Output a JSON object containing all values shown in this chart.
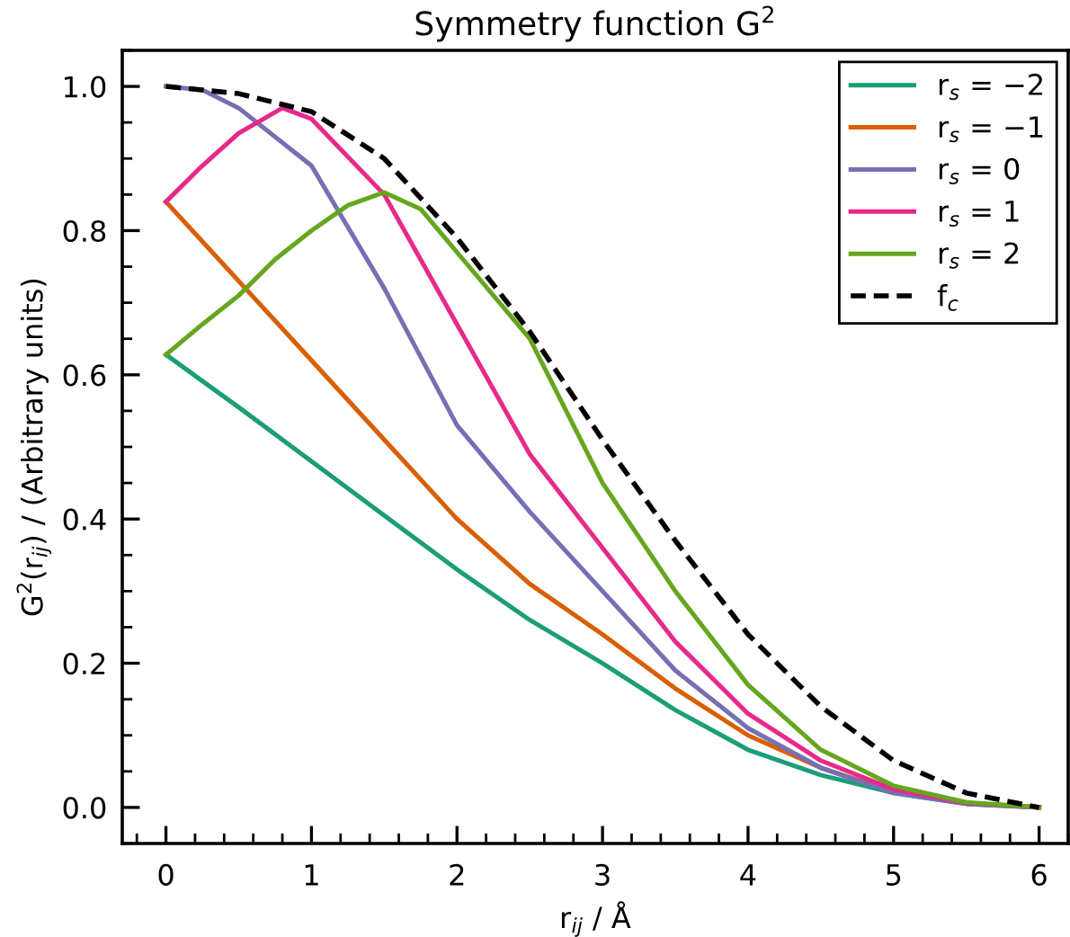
{
  "chart_data": {
    "type": "line",
    "title": "Symmetry function G$^{2}$",
    "xlabel": "r$_{ij}$ / Å",
    "ylabel": "G$^{2}$(r$_{ij}$) / (Arbitrary units)",
    "xlim": [
      -0.3,
      6.2
    ],
    "ylim": [
      -0.05,
      1.05
    ],
    "xticks": [
      0,
      1,
      2,
      3,
      4,
      5,
      6
    ],
    "yticks": [
      {
        "value": 0,
        "label": "0.0"
      },
      {
        "value": 0.2,
        "label": "0.2"
      },
      {
        "value": 0.4,
        "label": "0.4"
      },
      {
        "value": 0.6,
        "label": "0.6"
      },
      {
        "value": 0.8,
        "label": "0.8"
      },
      {
        "value": 1.0,
        "label": "1.0"
      }
    ],
    "grid": false,
    "legend": "top right",
    "marker": "none",
    "series": [
      {
        "name": "r$_{s}$ = −2",
        "color": "#1b9e77",
        "x": [
          0,
          0.5,
          1,
          1.5,
          2,
          2.5,
          3,
          3.5,
          4,
          4.5,
          5,
          5.5,
          6
        ],
        "values": [
          0.628,
          0.555,
          0.48,
          0.405,
          0.33,
          0.26,
          0.2,
          0.135,
          0.08,
          0.045,
          0.02,
          0.005,
          0
        ]
      },
      {
        "name": "r$_{s}$ = −1",
        "color": "#d95f02",
        "x": [
          0,
          0.5,
          1,
          1.5,
          2,
          2.5,
          3,
          3.5,
          4,
          4.5,
          5,
          5.5,
          6
        ],
        "values": [
          0.84,
          0.73,
          0.62,
          0.51,
          0.4,
          0.31,
          0.24,
          0.165,
          0.1,
          0.055,
          0.022,
          0.006,
          0
        ]
      },
      {
        "name": "r$_{s}$ = 0",
        "color": "#7570b3",
        "x": [
          0,
          0.25,
          0.5,
          1,
          1.5,
          2,
          2.5,
          3,
          3.5,
          4,
          4.5,
          5,
          5.5,
          6
        ],
        "values": [
          1.0,
          0.995,
          0.97,
          0.89,
          0.72,
          0.53,
          0.41,
          0.3,
          0.19,
          0.11,
          0.055,
          0.02,
          0.005,
          0
        ]
      },
      {
        "name": "r$_{s}$ = 1",
        "color": "#e7298a",
        "x": [
          0,
          0.25,
          0.5,
          0.8,
          1,
          1.5,
          2,
          2.5,
          3,
          3.5,
          4,
          4.5,
          5,
          5.5,
          6
        ],
        "values": [
          0.84,
          0.89,
          0.935,
          0.97,
          0.955,
          0.85,
          0.67,
          0.49,
          0.36,
          0.23,
          0.13,
          0.065,
          0.025,
          0.006,
          0
        ]
      },
      {
        "name": "r$_{s}$ = 2",
        "color": "#66a61e",
        "x": [
          0,
          0.25,
          0.5,
          0.75,
          1,
          1.25,
          1.5,
          1.75,
          2,
          2.5,
          3,
          3.5,
          4,
          4.5,
          5,
          5.5,
          6
        ],
        "values": [
          0.628,
          0.67,
          0.71,
          0.76,
          0.8,
          0.835,
          0.853,
          0.83,
          0.77,
          0.65,
          0.45,
          0.3,
          0.17,
          0.08,
          0.03,
          0.007,
          0
        ]
      },
      {
        "name": "f$_{c}$",
        "color": "#000000",
        "line_style": "dashed",
        "x": [
          0,
          0.5,
          1,
          1.5,
          2,
          2.5,
          3,
          3.5,
          4,
          4.5,
          5,
          5.5,
          6
        ],
        "values": [
          1.0,
          0.99,
          0.965,
          0.9,
          0.79,
          0.66,
          0.51,
          0.37,
          0.24,
          0.14,
          0.065,
          0.02,
          0
        ]
      }
    ]
  }
}
